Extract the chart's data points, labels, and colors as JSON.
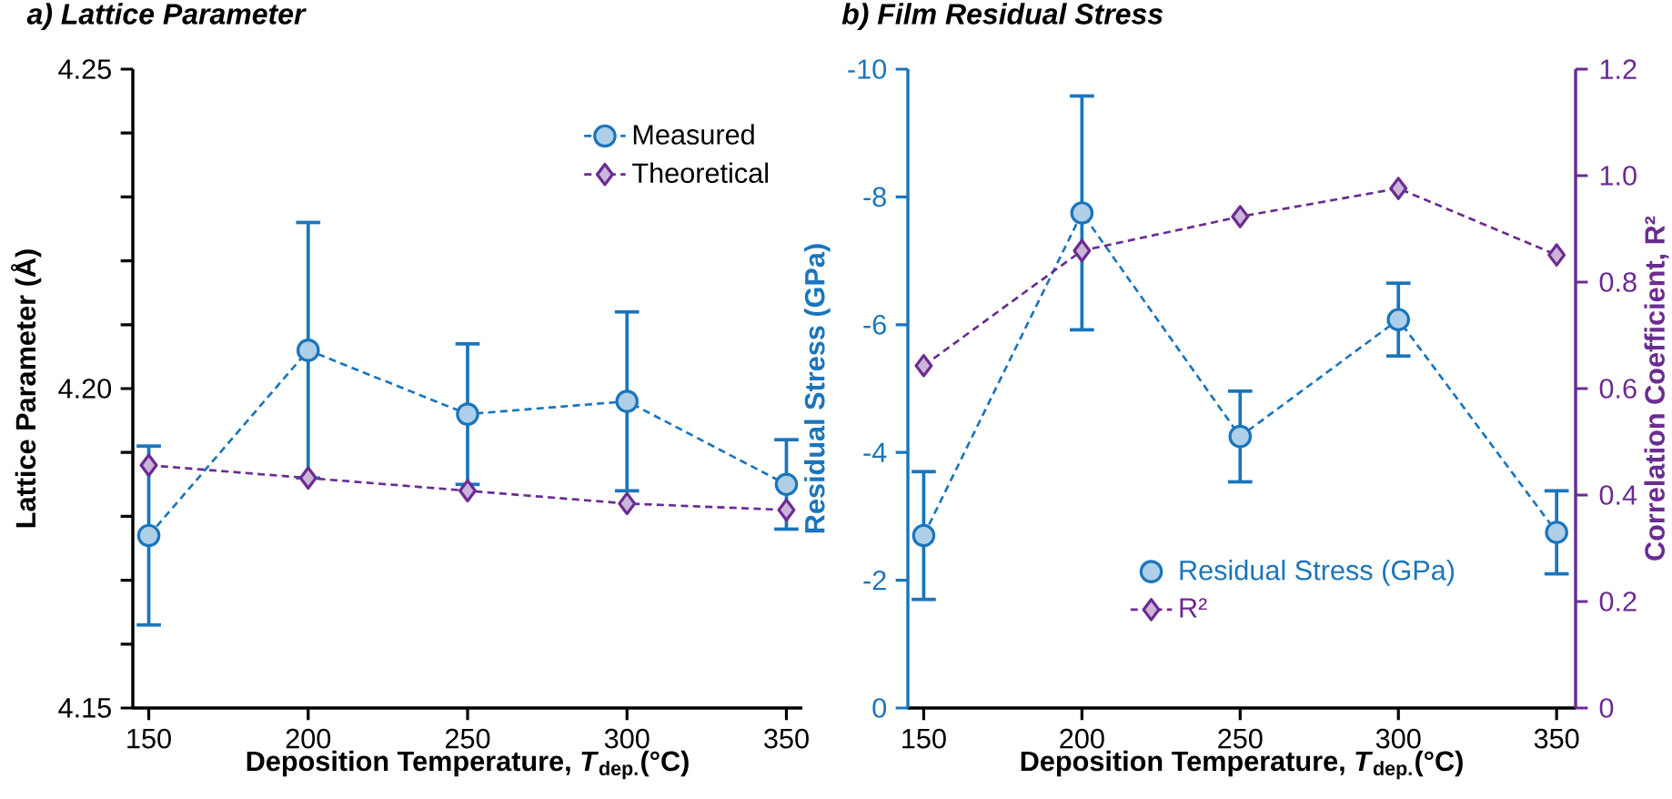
{
  "chart_data": [
    {
      "type": "line",
      "title": "a) Lattice Parameter",
      "xlabel": "Deposition Temperature, *T*$_{dep.}$(°C)",
      "ylabel": "Lattice Parameter (Å)",
      "x": [
        150,
        200,
        250,
        300,
        350
      ],
      "xlim": [
        145,
        355
      ],
      "xticks": [
        150,
        200,
        250,
        300,
        350
      ],
      "ylim": [
        4.15,
        4.25
      ],
      "yticks": [
        4.15,
        {
          "value": 4.16,
          "label": null
        },
        {
          "value": 4.17,
          "label": null
        },
        {
          "value": 4.18,
          "label": null
        },
        {
          "value": 4.19,
          "label": null
        },
        {
          "value": 4.2,
          "label": "4.20"
        },
        {
          "value": 4.21,
          "label": null
        },
        {
          "value": 4.22,
          "label": null
        },
        {
          "value": 4.23,
          "label": null
        },
        {
          "value": 4.24,
          "label": null
        },
        4.25
      ],
      "legend": "top right",
      "series": [
        {
          "name": "Measured",
          "color": "#1a75bc",
          "marker": "circle",
          "line_style": "dashed",
          "values": [
            4.177,
            4.206,
            4.196,
            4.198,
            4.185
          ],
          "errors": [
            0.014,
            0.02,
            0.011,
            0.014,
            0.007
          ]
        },
        {
          "name": "Theoretical",
          "color": "#6a2c91",
          "marker": "diamond",
          "line_style": "dashed",
          "values": [
            4.188,
            4.186,
            4.184,
            4.182,
            4.181
          ]
        }
      ]
    },
    {
      "type": "line",
      "title": "b) Film Residual Stress",
      "xlabel": "Deposition Temperature, *T*$_{dep.}$(°C)",
      "ylabel": "Residual Stress (GPa)",
      "y2label": "Correlation Coefficient, R²",
      "x": [
        150,
        200,
        250,
        300,
        350
      ],
      "xlim": [
        145,
        356
      ],
      "xticks": [
        150,
        200,
        250,
        300,
        350
      ],
      "ylim": [
        0,
        -10
      ],
      "yticks": [
        0,
        -2,
        -4,
        -6,
        -8,
        -10
      ],
      "y2lim": [
        0,
        1.2
      ],
      "y2ticks": [
        0,
        0.2,
        0.4,
        0.6,
        0.8,
        {
          "value": 1,
          "label": "1.0"
        },
        1.2
      ],
      "legend": "bottom",
      "series": [
        {
          "name": "Residual Stress (GPa)",
          "color": "#1a75bc",
          "marker": "circle",
          "line_style": "dashed",
          "values": [
            -2.7,
            -7.75,
            -4.25,
            -6.08,
            -2.75
          ],
          "errors": [
            1.0,
            1.83,
            0.71,
            0.57,
            0.65
          ]
        },
        {
          "name": "R²",
          "color": "#6a2c91",
          "marker": "diamond",
          "line_style": "dashed",
          "axis": "y2",
          "values": [
            0.643,
            0.859,
            0.923,
            0.976,
            0.851
          ]
        }
      ]
    }
  ]
}
